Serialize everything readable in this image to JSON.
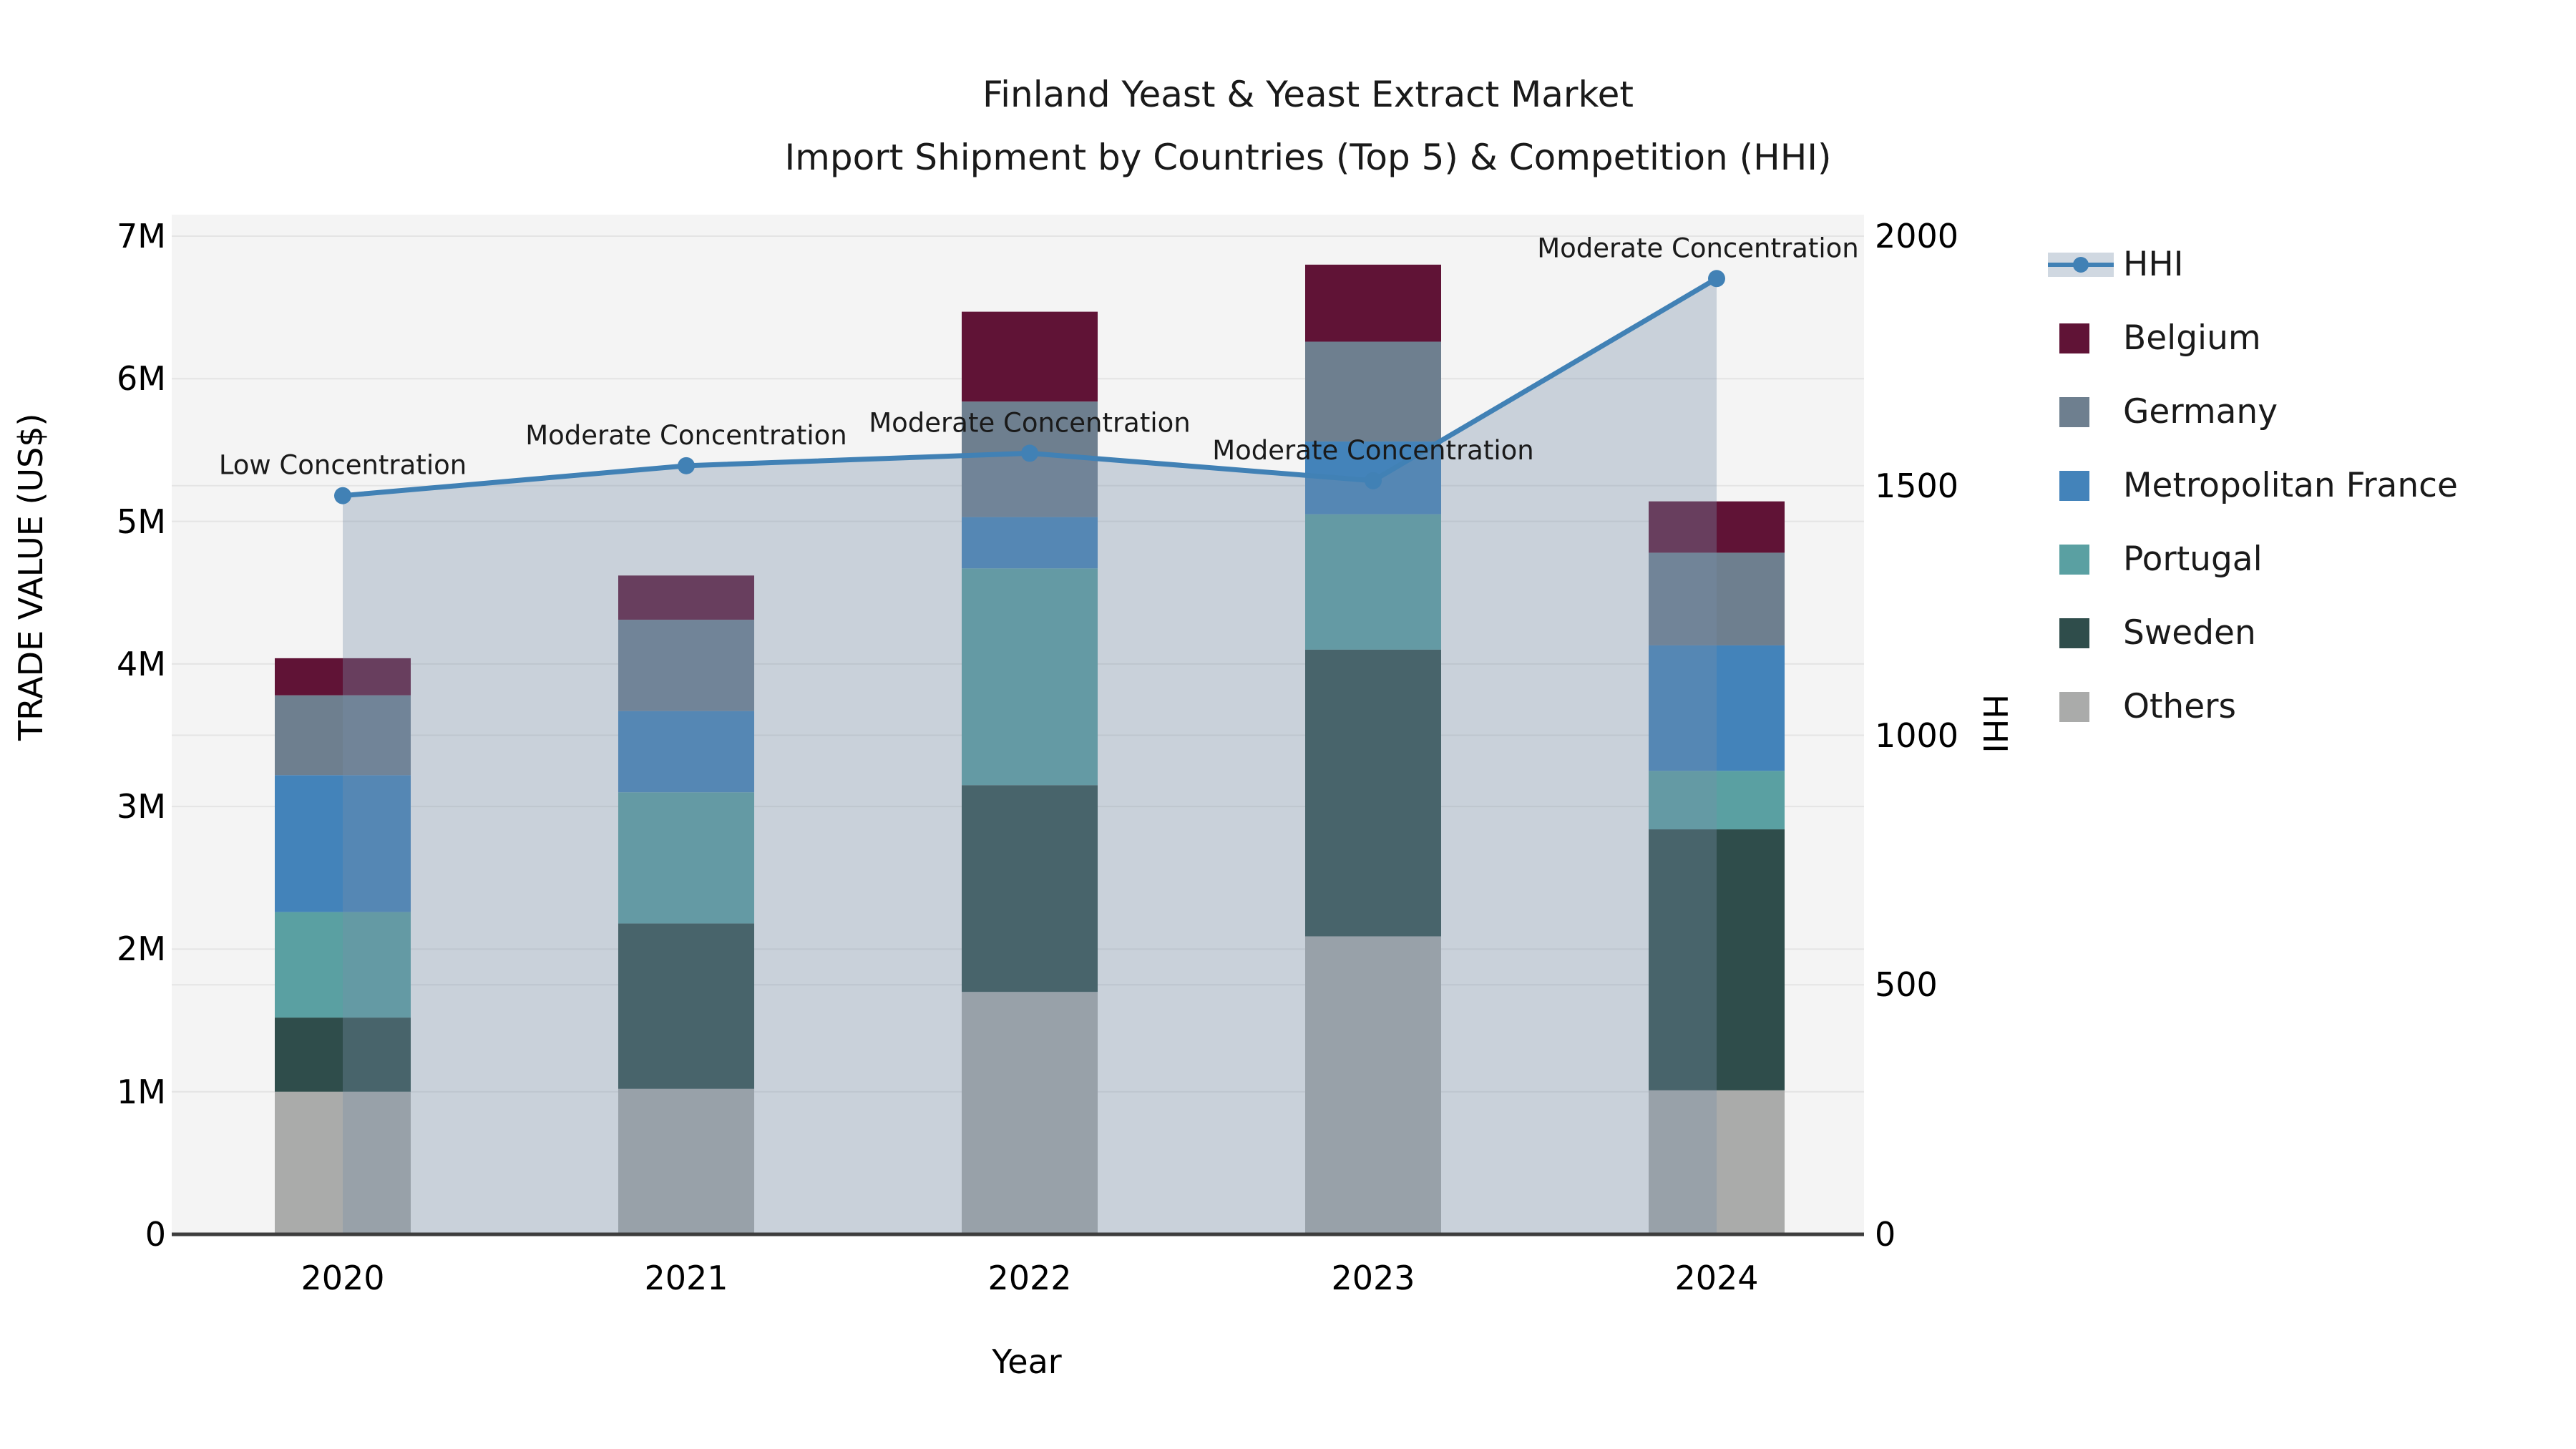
{
  "title": {
    "line1": "Finland Yeast & Yeast Extract Market",
    "line2": "Import Shipment by Countries (Top 5) & Competition (HHI)"
  },
  "axes": {
    "left": {
      "label": "TRADE VALUE (US$)",
      "ticks": [
        "7M",
        "6M",
        "5M",
        "4M",
        "3M",
        "2M",
        "1M",
        "0"
      ],
      "tick_values": [
        7,
        6,
        5,
        4,
        3,
        2,
        1,
        0
      ]
    },
    "right": {
      "label": "HHI",
      "ticks": [
        "2000",
        "1500",
        "1000",
        "500",
        "0"
      ],
      "tick_values": [
        2000,
        1500,
        1000,
        500,
        0
      ]
    },
    "x": {
      "label": "Year",
      "ticks": [
        "2020",
        "2021",
        "2022",
        "2023",
        "2024"
      ]
    }
  },
  "chart_data": {
    "type": "bar",
    "stacked": true,
    "categories": [
      "2020",
      "2021",
      "2022",
      "2023",
      "2024"
    ],
    "value_unit": "million US$",
    "series": [
      {
        "name": "Others",
        "color": "#aaabaa",
        "values": [
          1.0,
          1.02,
          1.7,
          2.09,
          1.01
        ]
      },
      {
        "name": "Sweden",
        "color": "#2f4d4b",
        "values": [
          0.52,
          1.16,
          1.45,
          2.01,
          1.83
        ]
      },
      {
        "name": "Portugal",
        "color": "#5aa0a2",
        "values": [
          0.74,
          0.92,
          1.52,
          0.95,
          0.41
        ]
      },
      {
        "name": "Metropolitan France",
        "color": "#4383ba",
        "values": [
          0.96,
          0.57,
          0.36,
          0.51,
          0.88
        ]
      },
      {
        "name": "Germany",
        "color": "#6e7f8f",
        "values": [
          0.56,
          0.64,
          0.81,
          0.7,
          0.65
        ]
      },
      {
        "name": "Belgium",
        "color": "#601336",
        "values": [
          0.26,
          0.31,
          0.63,
          0.54,
          0.36
        ]
      }
    ],
    "bar_totals": [
      4.04,
      4.62,
      6.47,
      6.8,
      5.14
    ],
    "line_series": {
      "name": "HHI",
      "axis": "right",
      "color": "#4181b5",
      "area_fill": "#778ea8",
      "area_opacity": 0.35,
      "values": [
        1480,
        1540,
        1565,
        1510,
        1915
      ],
      "annotations": [
        "Low Concentration",
        "Moderate Concentration",
        "Moderate Concentration",
        "Moderate Concentration",
        "Moderate Concentration"
      ]
    },
    "ylim_left": [
      0,
      7000000
    ],
    "ylim_right": [
      0,
      2000
    ],
    "grid": true,
    "legend_position": "right",
    "xlabel": "Year",
    "ylabel_left": "TRADE VALUE (US$)",
    "ylabel_right": "HHI"
  },
  "legend": {
    "items": [
      {
        "label": "HHI",
        "type": "line",
        "color": "#4181b5",
        "band": "#d0d8e1"
      },
      {
        "label": "Belgium",
        "type": "box",
        "color": "#601336"
      },
      {
        "label": "Germany",
        "type": "box",
        "color": "#6e7f8f"
      },
      {
        "label": "Metropolitan France",
        "type": "box",
        "color": "#4383ba"
      },
      {
        "label": "Portugal",
        "type": "box",
        "color": "#5aa0a2"
      },
      {
        "label": "Sweden",
        "type": "box",
        "color": "#2f4d4b"
      },
      {
        "label": "Others",
        "type": "box",
        "color": "#aaabaa"
      }
    ]
  },
  "style_colors": {
    "plot_bg": "#f4f4f4",
    "gridline": "#e4e4e4",
    "axis_line": "#3d3d3d",
    "text": "#1a1a1a"
  }
}
